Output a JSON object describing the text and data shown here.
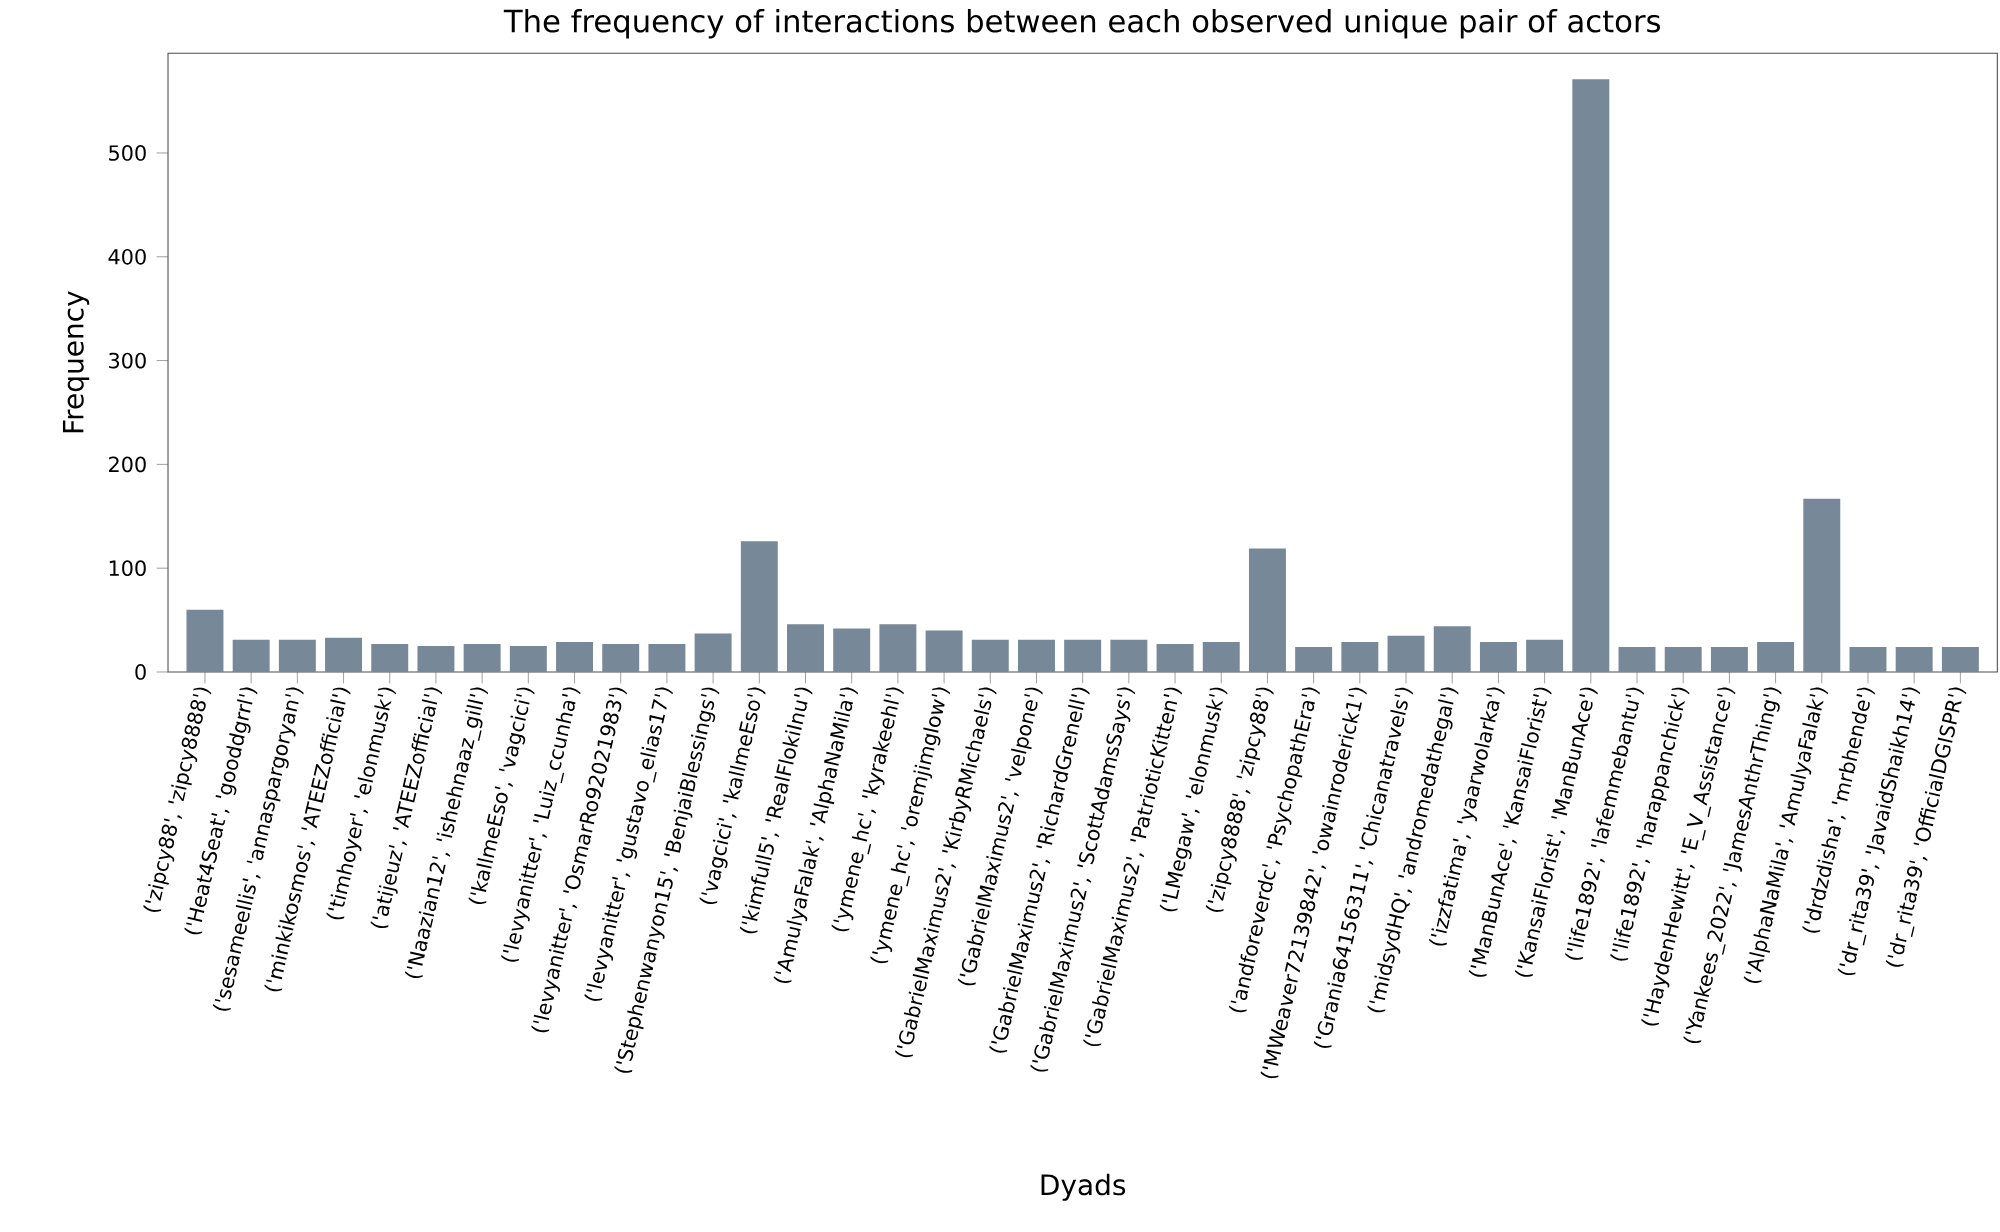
{
  "chart_data": {
    "type": "bar",
    "title": "The frequency of interactions between each observed unique pair of actors",
    "xlabel": "Dyads",
    "ylabel": "Frequency",
    "categories": [
      "('zipcy88', 'zipcy8888')",
      "('Heat4Seat', 'gooddgrrl')",
      "('sesameellis', 'annaspargoryan')",
      "('minkikosmos', 'ATEEZofficial')",
      "('timhoyer', 'elonmusk')",
      "('atijeuz', 'ATEEZofficial')",
      "('Naazian12', 'ishehnaaz_gill')",
      "('kallmeEso', 'vagcici')",
      "('levyanitter', 'Luiz_ccunha')",
      "('levyanitter', 'OsmarRo92021983')",
      "('levyanitter', 'gustavo_elias17')",
      "('Stephenwanyon15', 'BenjaiBlessings')",
      "('vagcici', 'kallmeEso')",
      "('kimfull5', 'RealFlokiInu')",
      "('AmulyaFalak', 'AlphaNaMila')",
      "('ymene_hc', 'kyrakeehl')",
      "('ymene_hc', 'oremjimglow')",
      "('GabrielMaximus2', 'KirbyRMichaels')",
      "('GabrielMaximus2', 'velpone')",
      "('GabrielMaximus2', 'RichardGrenell')",
      "('GabrielMaximus2', 'ScottAdamsSays')",
      "('GabrielMaximus2', 'PatrioticKitten')",
      "('LMegaw', 'elonmusk')",
      "('zipcy8888', 'zipcy88')",
      "('andforeverdc', 'PsychopathEra')",
      "('MWeaver72139842', 'owainroderick1')",
      "('Grania64156311', 'Chicanatravels')",
      "('midsydHQ', 'andromedathegal')",
      "('izzfatima', 'yaarwolarka')",
      "('ManBunAce', 'KansaiFlorist')",
      "('KansaiFlorist', 'ManBunAce')",
      "('life1892', 'lafemmebantu')",
      "('life1892', 'harappanchick')",
      "('HaydenHewitt', 'E_V_Assistance')",
      "('Yankees_2022', 'JamesAnthrThing')",
      "('AlphaNaMila', 'AmulyaFalak')",
      "('drdzdisha', 'mrbhende')",
      "('dr_rita39', 'JavaidShaikh14')",
      "('dr_rita39', 'OfficialDGISPR')"
    ],
    "values": [
      60,
      31,
      31,
      33,
      27,
      25,
      27,
      25,
      29,
      27,
      27,
      37,
      126,
      46,
      42,
      46,
      40,
      31,
      31,
      31,
      31,
      27,
      29,
      119,
      24,
      29,
      35,
      44,
      29,
      31,
      571,
      24,
      24,
      24,
      29,
      167,
      24,
      24,
      24
    ],
    "color": "#778899",
    "ylim": [
      0,
      596
    ],
    "yticks": [
      0,
      100,
      200,
      300,
      400,
      500
    ]
  }
}
